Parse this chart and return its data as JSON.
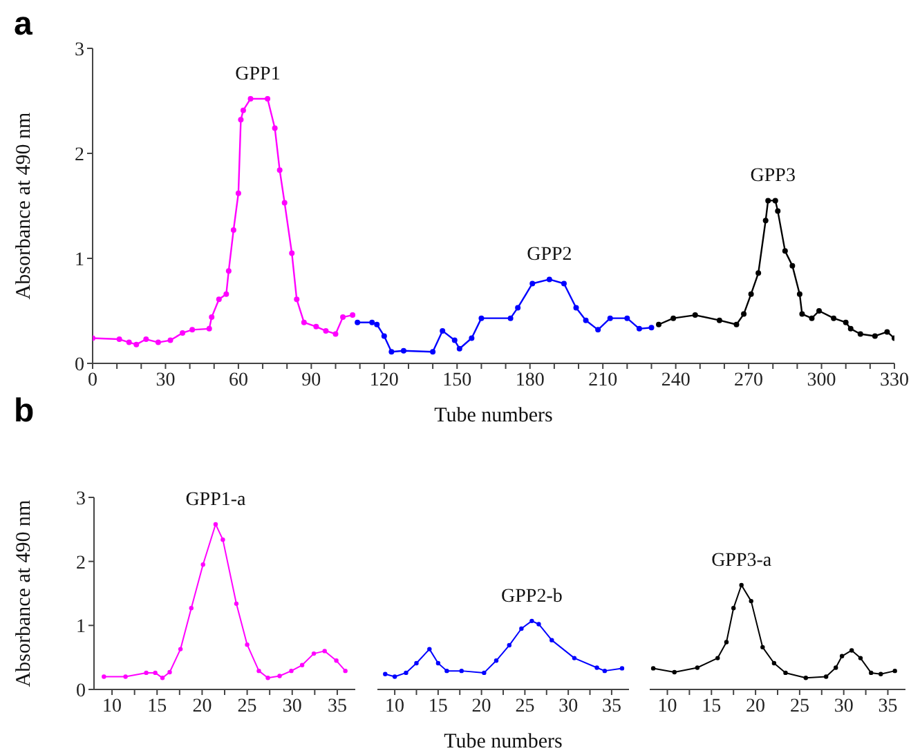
{
  "chart_data": [
    {
      "type": "line",
      "xlabel": "Tube numbers",
      "ylabel": "Absorbance at 490 nm",
      "marker": "circle",
      "line_style": "solid",
      "xlim": [
        0,
        330
      ],
      "ylim": [
        0,
        3
      ],
      "yticks": [
        0,
        1,
        2,
        3
      ],
      "xticks": [
        0,
        {
          "value": 10,
          "label": null
        },
        {
          "value": 20,
          "label": null
        },
        30,
        {
          "value": 40,
          "label": null
        },
        {
          "value": 50,
          "label": null
        },
        60,
        {
          "value": 70,
          "label": null
        },
        {
          "value": 80,
          "label": null
        },
        90,
        {
          "value": 100,
          "label": null
        },
        {
          "value": 110,
          "label": null
        },
        120,
        {
          "value": 130,
          "label": null
        },
        {
          "value": 140,
          "label": null
        },
        150,
        {
          "value": 160,
          "label": null
        },
        {
          "value": 170,
          "label": null
        },
        180,
        {
          "value": 190,
          "label": null
        },
        {
          "value": 200,
          "label": null
        },
        210,
        {
          "value": 220,
          "label": null
        },
        {
          "value": 230,
          "label": null
        },
        240,
        {
          "value": 250,
          "label": null
        },
        {
          "value": 260,
          "label": null
        },
        270,
        {
          "value": 280,
          "label": null
        },
        {
          "value": 290,
          "label": null
        },
        300,
        {
          "value": 310,
          "label": null
        },
        {
          "value": 320,
          "label": null
        },
        330
      ],
      "annotations": [
        "a",
        {
          "text": "GPP1",
          "x": 68,
          "y": 2.52
        },
        {
          "text": "GPP2",
          "x": 188,
          "y": 0.8
        },
        {
          "text": "GPP3",
          "x": 280,
          "y": 1.55
        }
      ],
      "series": [
        {
          "color": "#ff00ff",
          "x": [
            0,
            11,
            15,
            18,
            22,
            27,
            32,
            37,
            41,
            48,
            49,
            52,
            55,
            56,
            58,
            60,
            61,
            62,
            65,
            72,
            75,
            77,
            79,
            82,
            84,
            87,
            92,
            96,
            100,
            103,
            107
          ],
          "values": [
            0.24,
            0.23,
            0.2,
            0.18,
            0.23,
            0.2,
            0.22,
            0.29,
            0.32,
            0.33,
            0.44,
            0.61,
            0.66,
            0.88,
            1.27,
            1.62,
            2.32,
            2.41,
            2.52,
            2.52,
            2.24,
            1.84,
            1.53,
            1.05,
            0.61,
            0.39,
            0.35,
            0.31,
            0.28,
            0.44,
            0.46
          ]
        },
        {
          "color": "#0000ff",
          "x": [
            109,
            115,
            117,
            120,
            123,
            128,
            140,
            144,
            149,
            151,
            156,
            160,
            172,
            175,
            181,
            188,
            194,
            199,
            203,
            208,
            213,
            220,
            225,
            230
          ],
          "values": [
            0.39,
            0.39,
            0.37,
            0.26,
            0.11,
            0.12,
            0.11,
            0.31,
            0.22,
            0.14,
            0.24,
            0.43,
            0.43,
            0.53,
            0.76,
            0.8,
            0.76,
            0.53,
            0.41,
            0.32,
            0.43,
            0.43,
            0.33,
            0.34
          ]
        },
        {
          "color": "#000000",
          "x": [
            233,
            239,
            248,
            258,
            265,
            268,
            271,
            274,
            277,
            278,
            281,
            282,
            285,
            288,
            291,
            292,
            296,
            299,
            305,
            310,
            312,
            316,
            322,
            327,
            330
          ],
          "values": [
            0.37,
            0.43,
            0.46,
            0.41,
            0.37,
            0.47,
            0.66,
            0.86,
            1.36,
            1.55,
            1.55,
            1.45,
            1.07,
            0.93,
            0.66,
            0.47,
            0.43,
            0.5,
            0.43,
            0.39,
            0.33,
            0.28,
            0.26,
            0.3,
            0.24
          ]
        }
      ]
    },
    {
      "type": "line",
      "ylabel": "Absorbance at 490 nm",
      "marker": "circle",
      "line_style": "solid",
      "xlim": [
        8,
        37
      ],
      "ylim": [
        0,
        3
      ],
      "yticks": [
        0,
        1,
        2,
        3
      ],
      "xticks": [
        10,
        {
          "value": 12.5,
          "label": null
        },
        15,
        {
          "value": 17.5,
          "label": null
        },
        20,
        {
          "value": 22.5,
          "label": null
        },
        25,
        {
          "value": 27.5,
          "label": null
        },
        30,
        {
          "value": 32.5,
          "label": null
        },
        35
      ],
      "annotations": [
        "b",
        {
          "text": "GPP1-a",
          "x": 21.5,
          "y": 2.58
        }
      ],
      "series": [
        {
          "color": "#ff00ff",
          "x": [
            9.1,
            11.5,
            13.8,
            14.8,
            15.6,
            16.4,
            17.6,
            18.8,
            20.1,
            21.5,
            22.3,
            23.8,
            25,
            26.3,
            27.3,
            28.6,
            29.9,
            31.1,
            32.4,
            33.6,
            34.9,
            35.9
          ],
          "values": [
            0.2,
            0.2,
            0.26,
            0.26,
            0.18,
            0.27,
            0.63,
            1.27,
            1.95,
            2.58,
            2.34,
            1.34,
            0.7,
            0.29,
            0.18,
            0.21,
            0.29,
            0.38,
            0.56,
            0.6,
            0.45,
            0.29
          ]
        }
      ]
    },
    {
      "type": "line",
      "xlabel": "Tube numbers",
      "tick_labels": "x",
      "marker": "circle",
      "line_style": "solid",
      "xlim": [
        8,
        37
      ],
      "ylim": [
        0,
        3
      ],
      "xticks": [
        10,
        {
          "value": 12.5,
          "label": null
        },
        15,
        {
          "value": 17.5,
          "label": null
        },
        20,
        {
          "value": 22.5,
          "label": null
        },
        25,
        {
          "value": 27.5,
          "label": null
        },
        30,
        {
          "value": 32.5,
          "label": null
        },
        35
      ],
      "annotations": [
        {
          "text": "GPP2-b",
          "x": 25.8,
          "y": 1.07
        }
      ],
      "series": [
        {
          "color": "#0000ff",
          "x": [
            8.9,
            10,
            11.3,
            12.5,
            14,
            15,
            16,
            17.7,
            20.3,
            21.7,
            23.2,
            24.6,
            25.8,
            26.6,
            28.1,
            30.7,
            33.3,
            34.2,
            36.2
          ],
          "values": [
            0.24,
            0.2,
            0.26,
            0.41,
            0.63,
            0.41,
            0.29,
            0.29,
            0.26,
            0.45,
            0.69,
            0.95,
            1.07,
            1.02,
            0.77,
            0.49,
            0.34,
            0.29,
            0.33
          ]
        }
      ]
    },
    {
      "type": "line",
      "tick_labels": "x",
      "marker": "circle",
      "line_style": "solid",
      "xlim": [
        8,
        37
      ],
      "ylim": [
        0,
        3
      ],
      "xticks": [
        10,
        {
          "value": 12.5,
          "label": null
        },
        15,
        {
          "value": 17.5,
          "label": null
        },
        20,
        {
          "value": 22.5,
          "label": null
        },
        25,
        {
          "value": 27.5,
          "label": null
        },
        30,
        {
          "value": 32.5,
          "label": null
        },
        35
      ],
      "annotations": [
        {
          "text": "GPP3-a",
          "x": 18.4,
          "y": 1.63
        }
      ],
      "series": [
        {
          "color": "#000000",
          "x": [
            8.4,
            10.8,
            13.4,
            15.7,
            16.7,
            17.5,
            18.4,
            19.5,
            20.8,
            22.1,
            23.4,
            25.7,
            28,
            29.1,
            29.8,
            30.9,
            31.9,
            33.1,
            34.2,
            35.8
          ],
          "values": [
            0.33,
            0.27,
            0.34,
            0.49,
            0.74,
            1.27,
            1.63,
            1.38,
            0.66,
            0.41,
            0.26,
            0.18,
            0.2,
            0.34,
            0.52,
            0.61,
            0.49,
            0.26,
            0.24,
            0.29
          ]
        }
      ]
    }
  ]
}
